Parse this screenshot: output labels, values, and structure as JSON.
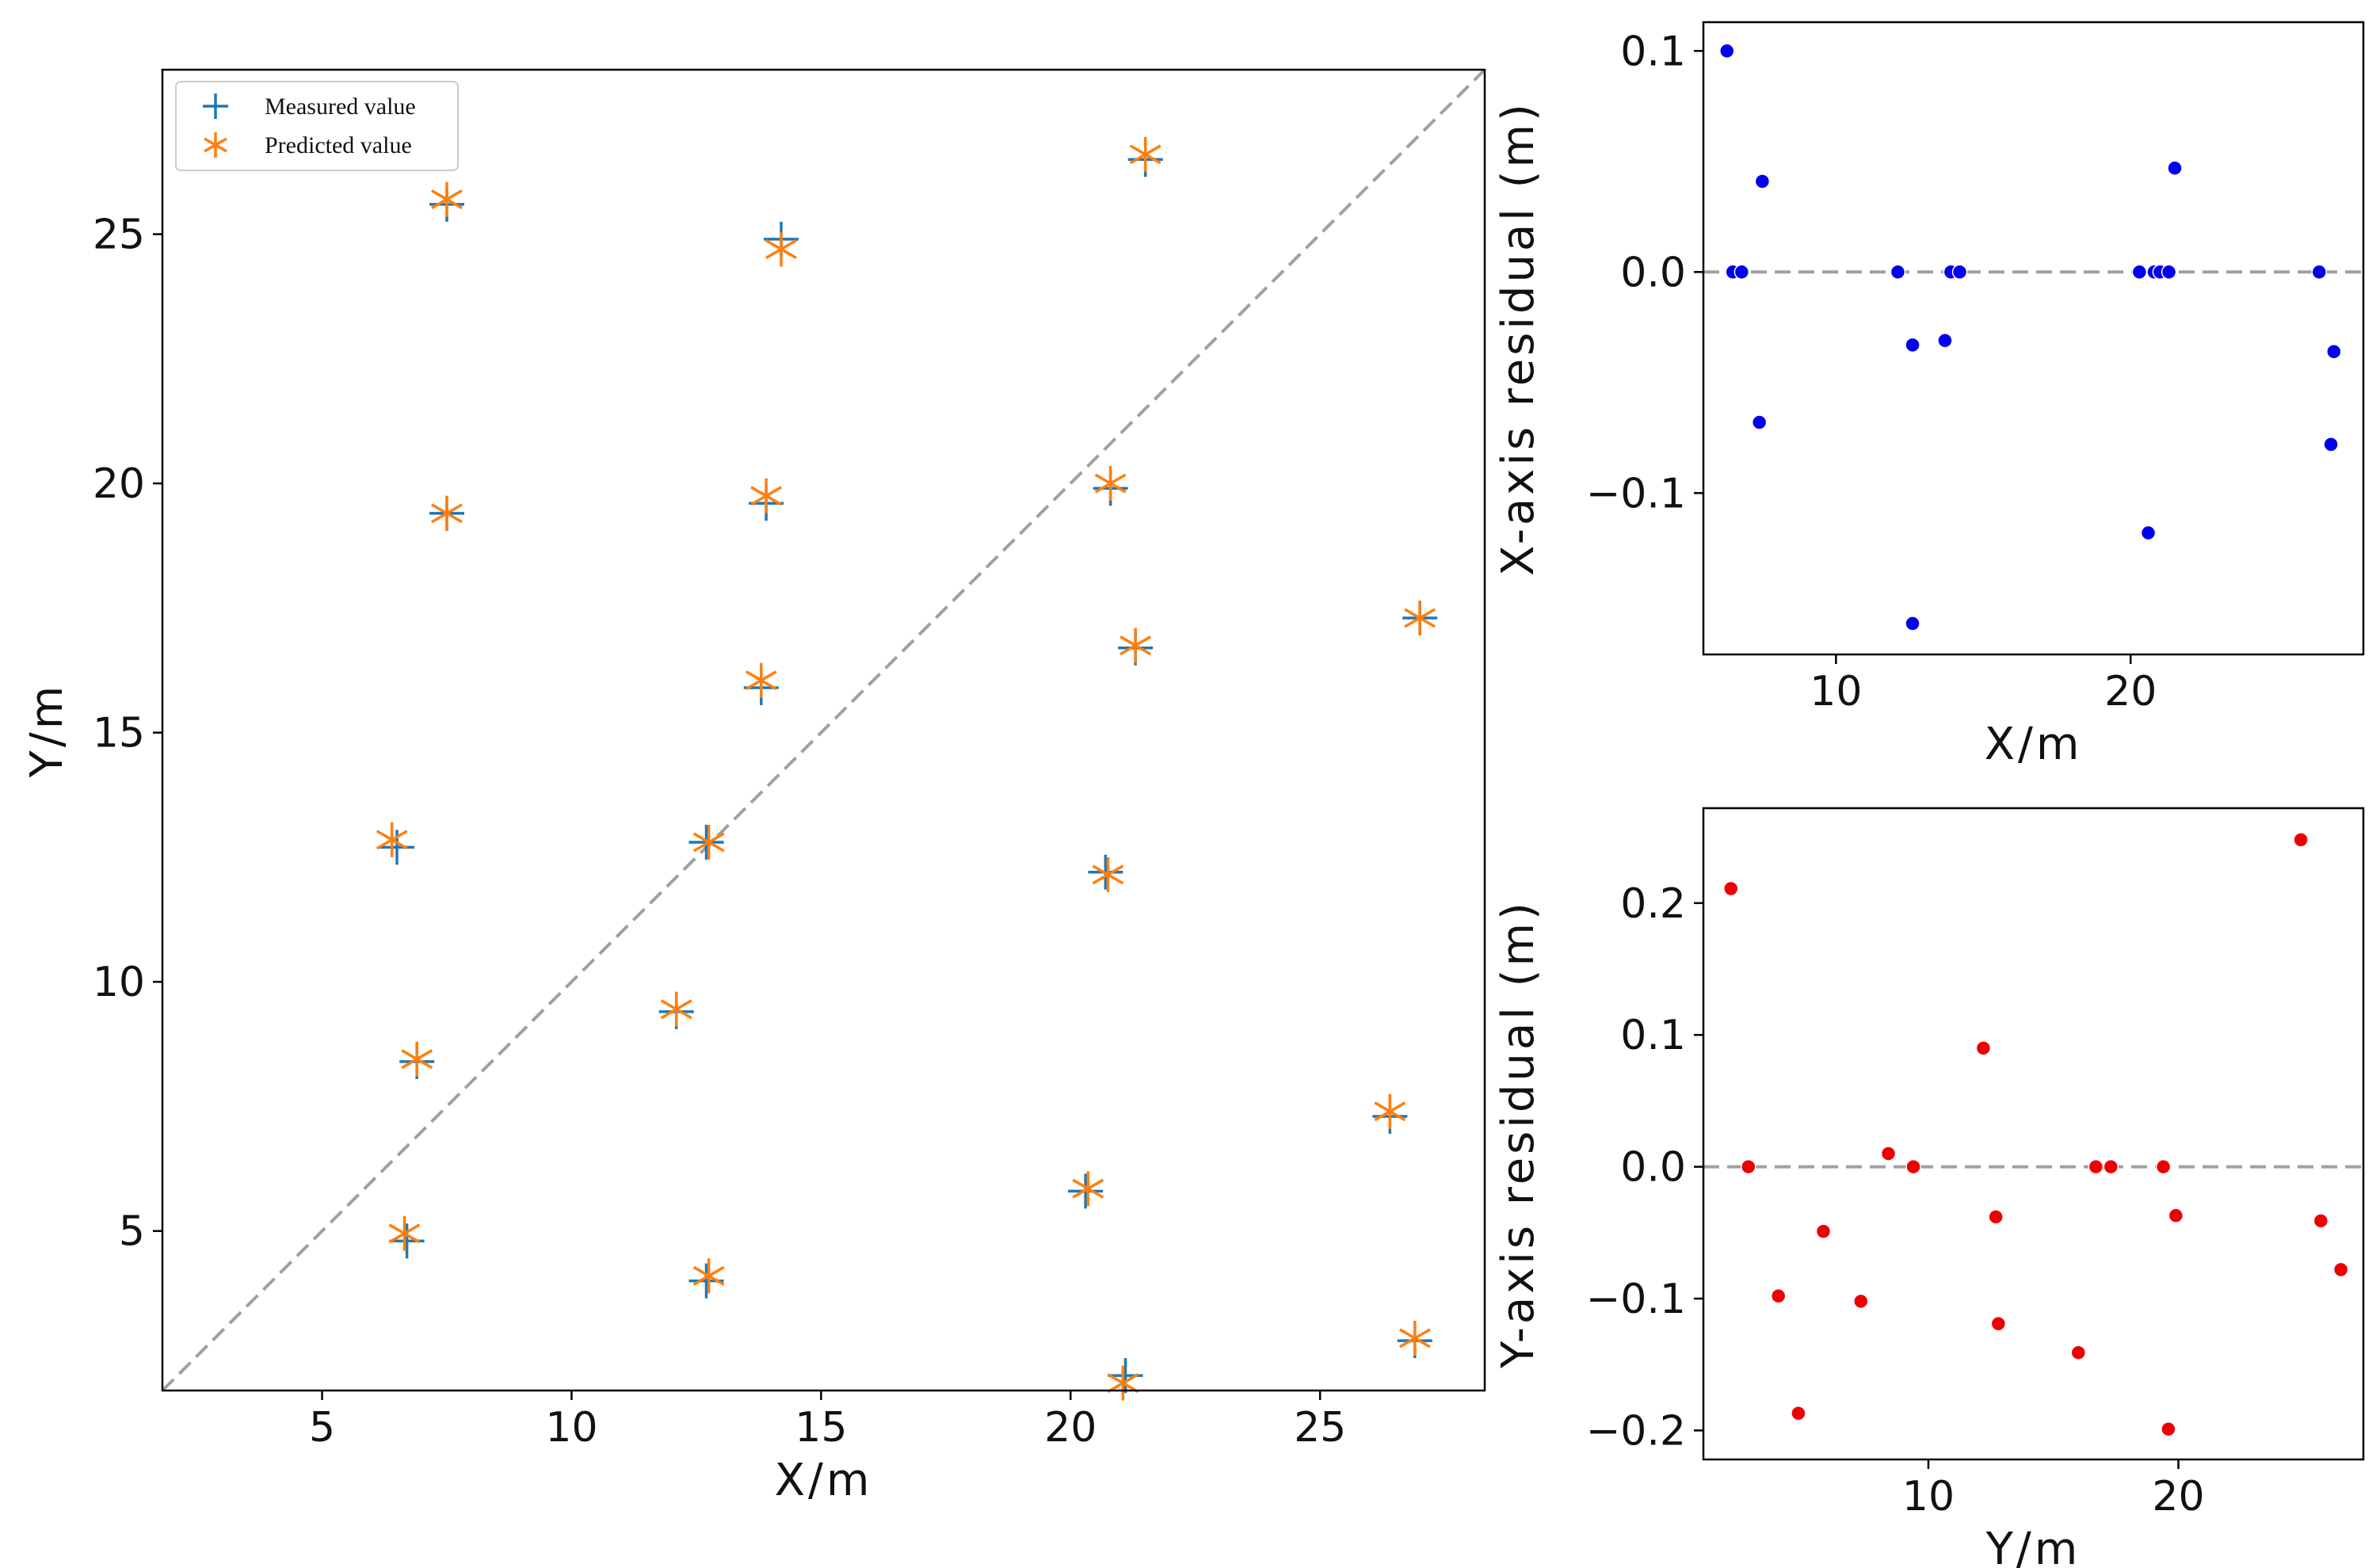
{
  "chart_data": [
    {
      "type": "scatter",
      "xlabel": "X/m",
      "ylabel": "Y/m",
      "xlim": [
        1.8,
        28.3
      ],
      "ylim": [
        1.8,
        28.3
      ],
      "xticks": [
        5,
        10,
        15,
        20,
        25
      ],
      "yticks": [
        5,
        10,
        15,
        20,
        25
      ],
      "grid": false,
      "legend_position": "top-left",
      "reference_line": {
        "style": "dashed",
        "color": "#a0a0a0",
        "description": "y = x"
      },
      "series": [
        {
          "name": "Measured value",
          "marker": "plus",
          "color": "#1f77b4",
          "points": [
            [
              7.5,
              25.6
            ],
            [
              14.2,
              24.9
            ],
            [
              21.5,
              26.5
            ],
            [
              7.5,
              19.4
            ],
            [
              13.9,
              19.6
            ],
            [
              20.8,
              19.9
            ],
            [
              13.8,
              15.9
            ],
            [
              21.3,
              16.7
            ],
            [
              27.0,
              17.3
            ],
            [
              6.5,
              12.7
            ],
            [
              12.7,
              12.8
            ],
            [
              20.7,
              12.2
            ],
            [
              12.1,
              9.4
            ],
            [
              6.9,
              8.4
            ],
            [
              26.4,
              7.3
            ],
            [
              6.7,
              4.8
            ],
            [
              12.7,
              4.0
            ],
            [
              20.3,
              5.8
            ],
            [
              26.9,
              2.8
            ],
            [
              21.1,
              2.1
            ]
          ]
        },
        {
          "name": "Predicted value",
          "marker": "star",
          "color": "#ff7f0e",
          "points": [
            [
              7.5,
              25.7
            ],
            [
              14.2,
              24.7
            ],
            [
              21.5,
              26.6
            ],
            [
              7.5,
              19.4
            ],
            [
              13.9,
              19.75
            ],
            [
              20.8,
              20.0
            ],
            [
              13.8,
              16.05
            ],
            [
              21.3,
              16.75
            ],
            [
              27.0,
              17.3
            ],
            [
              6.4,
              12.85
            ],
            [
              12.75,
              12.8
            ],
            [
              20.75,
              12.15
            ],
            [
              12.1,
              9.45
            ],
            [
              6.9,
              8.45
            ],
            [
              26.4,
              7.4
            ],
            [
              6.65,
              4.95
            ],
            [
              12.75,
              4.1
            ],
            [
              20.35,
              5.85
            ],
            [
              26.9,
              2.85
            ],
            [
              21.05,
              1.95
            ]
          ]
        }
      ]
    },
    {
      "type": "scatter",
      "xlabel": "X/m",
      "ylabel": "X-axis residual (m)",
      "xlim": [
        5.5,
        27.9
      ],
      "ylim": [
        -0.173,
        0.113
      ],
      "xticks": [
        10,
        20
      ],
      "yticks": [
        0.1,
        0.0,
        -0.1
      ],
      "ytick_labels": [
        "0.1",
        "0.0",
        "−0.1"
      ],
      "grid": false,
      "reference_line": {
        "style": "dashed",
        "color": "#a0a0a0",
        "y": 0
      },
      "series": [
        {
          "color": "#0000ee",
          "points": [
            [
              6.3,
              0.1
            ],
            [
              6.5,
              0.0
            ],
            [
              6.8,
              0.0
            ],
            [
              7.5,
              0.041
            ],
            [
              7.4,
              -0.068
            ],
            [
              12.1,
              0.0
            ],
            [
              12.6,
              -0.033
            ],
            [
              12.6,
              -0.159
            ],
            [
              13.7,
              -0.031
            ],
            [
              13.9,
              0.0
            ],
            [
              14.2,
              0.0
            ],
            [
              20.3,
              0.0
            ],
            [
              20.6,
              -0.118
            ],
            [
              20.8,
              0.0
            ],
            [
              21.0,
              0.0
            ],
            [
              21.3,
              0.0
            ],
            [
              21.5,
              0.047
            ],
            [
              26.4,
              0.0
            ],
            [
              26.8,
              -0.078
            ],
            [
              26.9,
              -0.036
            ]
          ]
        }
      ]
    },
    {
      "type": "scatter",
      "xlabel": "Y/m",
      "ylabel": "Y-axis residual (m)",
      "xlim": [
        1.0,
        27.4
      ],
      "ylim": [
        -0.222,
        0.272
      ],
      "xticks": [
        10,
        20
      ],
      "yticks": [
        0.2,
        0.1,
        0.0,
        -0.1,
        -0.2
      ],
      "ytick_labels": [
        "0.2",
        "0.1",
        "0.0",
        "−0.1",
        "−0.2"
      ],
      "grid": false,
      "reference_line": {
        "style": "dashed",
        "color": "#a0a0a0",
        "y": 0
      },
      "series": [
        {
          "color": "#ee0000",
          "points": [
            [
              2.1,
              0.211
            ],
            [
              2.8,
              0.0
            ],
            [
              4.0,
              -0.098
            ],
            [
              4.8,
              -0.187
            ],
            [
              5.8,
              -0.049
            ],
            [
              7.3,
              -0.102
            ],
            [
              8.4,
              0.01
            ],
            [
              9.4,
              0.0
            ],
            [
              12.2,
              0.09
            ],
            [
              12.7,
              -0.038
            ],
            [
              12.8,
              -0.119
            ],
            [
              16.0,
              -0.141
            ],
            [
              16.7,
              0.0
            ],
            [
              17.3,
              0.0
            ],
            [
              19.4,
              0.0
            ],
            [
              19.6,
              -0.199
            ],
            [
              19.9,
              -0.037
            ],
            [
              24.9,
              0.248
            ],
            [
              25.7,
              -0.041
            ],
            [
              26.5,
              -0.078
            ]
          ]
        }
      ]
    }
  ]
}
